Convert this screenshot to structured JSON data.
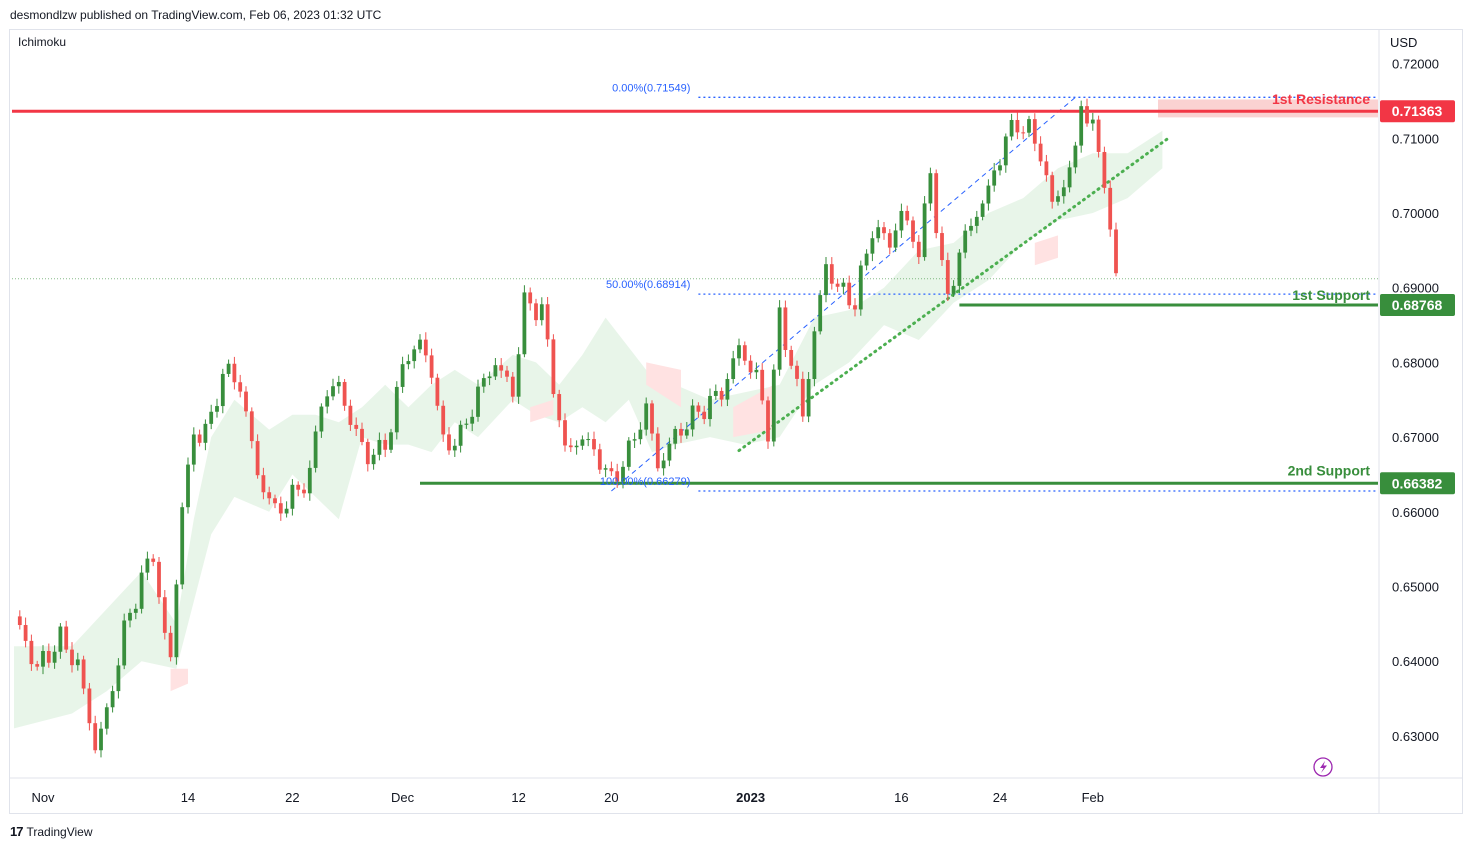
{
  "header": {
    "publisher_line": "desmondlzw published on TradingView.com, Feb 06, 2023 01:32 UTC",
    "indicator": "Ichimoku",
    "currency": "USD"
  },
  "footer": {
    "brand": "TradingView"
  },
  "chart_data": {
    "type": "candlestick",
    "ylim": [
      0.6245,
      0.7245
    ],
    "y_ticks": [
      0.72,
      0.71,
      0.7,
      0.69,
      0.68,
      0.67,
      0.66,
      0.65,
      0.64,
      0.63
    ],
    "y_tick_labels": [
      "0.72000",
      "0.71000",
      "0.70000",
      "0.69000",
      "0.68000",
      "0.67000",
      "0.66000",
      "0.65000",
      "0.64000",
      "0.63000"
    ],
    "x_ticks": [
      {
        "label": "Nov",
        "bar": 5,
        "bold": false
      },
      {
        "label": "14",
        "bar": 30,
        "bold": false
      },
      {
        "label": "22",
        "bar": 48,
        "bold": false
      },
      {
        "label": "Dec",
        "bar": 67,
        "bold": false
      },
      {
        "label": "12",
        "bar": 87,
        "bold": false
      },
      {
        "label": "20",
        "bar": 103,
        "bold": false
      },
      {
        "label": "2023",
        "bar": 127,
        "bold": true
      },
      {
        "label": "16",
        "bar": 153,
        "bold": false
      },
      {
        "label": "24",
        "bar": 170,
        "bold": false
      },
      {
        "label": "Feb",
        "bar": 186,
        "bold": false
      }
    ],
    "close_path": [
      [
        0,
        0.646
      ],
      [
        4,
        0.639
      ],
      [
        8,
        0.643
      ],
      [
        11,
        0.6395
      ],
      [
        14,
        0.6285
      ],
      [
        16,
        0.633
      ],
      [
        19,
        0.644
      ],
      [
        22,
        0.651
      ],
      [
        24,
        0.6545
      ],
      [
        26,
        0.643
      ],
      [
        27,
        0.6405
      ],
      [
        29,
        0.661
      ],
      [
        31,
        0.67
      ],
      [
        34,
        0.672
      ],
      [
        36,
        0.679
      ],
      [
        39,
        0.677
      ],
      [
        42,
        0.665
      ],
      [
        45,
        0.66
      ],
      [
        48,
        0.662
      ],
      [
        51,
        0.665
      ],
      [
        53,
        0.675
      ],
      [
        56,
        0.677
      ],
      [
        59,
        0.67
      ],
      [
        62,
        0.667
      ],
      [
        65,
        0.671
      ],
      [
        67,
        0.68
      ],
      [
        70,
        0.6825
      ],
      [
        72,
        0.679
      ],
      [
        74,
        0.669
      ],
      [
        77,
        0.67
      ],
      [
        80,
        0.676
      ],
      [
        83,
        0.68
      ],
      [
        86,
        0.676
      ],
      [
        88,
        0.688
      ],
      [
        91,
        0.687
      ],
      [
        93,
        0.677
      ],
      [
        95,
        0.668
      ],
      [
        98,
        0.67
      ],
      [
        101,
        0.667
      ],
      [
        103,
        0.664
      ],
      [
        106,
        0.668
      ],
      [
        109,
        0.674
      ],
      [
        111,
        0.666
      ],
      [
        113,
        0.669
      ],
      [
        116,
        0.672
      ],
      [
        119,
        0.674
      ],
      [
        122,
        0.676
      ],
      [
        125,
        0.682
      ],
      [
        128,
        0.678
      ],
      [
        130,
        0.671
      ],
      [
        132,
        0.686
      ],
      [
        134,
        0.68
      ],
      [
        136,
        0.673
      ],
      [
        138,
        0.684
      ],
      [
        140,
        0.693
      ],
      [
        142,
        0.69
      ],
      [
        145,
        0.688
      ],
      [
        148,
        0.698
      ],
      [
        151,
        0.696
      ],
      [
        153,
        0.7
      ],
      [
        156,
        0.695
      ],
      [
        158,
        0.705
      ],
      [
        160,
        0.693
      ],
      [
        161,
        0.688
      ],
      [
        163,
        0.695
      ],
      [
        166,
        0.7
      ],
      [
        168,
        0.703
      ],
      [
        171,
        0.71
      ],
      [
        173,
        0.712
      ],
      [
        175,
        0.711
      ],
      [
        177,
        0.708
      ],
      [
        179,
        0.701
      ],
      [
        181,
        0.704
      ],
      [
        183,
        0.708
      ],
      [
        184,
        0.715
      ],
      [
        186,
        0.711
      ],
      [
        188,
        0.705
      ],
      [
        189,
        0.697
      ],
      [
        190,
        0.691
      ]
    ],
    "cloud": [
      [
        0,
        0.631,
        0.642
      ],
      [
        10,
        0.633,
        0.642
      ],
      [
        16,
        0.636,
        0.647
      ],
      [
        22,
        0.64,
        0.652
      ],
      [
        28,
        0.639,
        0.645
      ],
      [
        31,
        0.648,
        0.659
      ],
      [
        34,
        0.657,
        0.67
      ],
      [
        38,
        0.662,
        0.675
      ],
      [
        44,
        0.66,
        0.671
      ],
      [
        48,
        0.665,
        0.673
      ],
      [
        52,
        0.662,
        0.673
      ],
      [
        56,
        0.659,
        0.672
      ],
      [
        60,
        0.67,
        0.674
      ],
      [
        64,
        0.669,
        0.677
      ],
      [
        68,
        0.669,
        0.674
      ],
      [
        72,
        0.668,
        0.677
      ],
      [
        76,
        0.672,
        0.679
      ],
      [
        80,
        0.67,
        0.677
      ],
      [
        86,
        0.675,
        0.681
      ],
      [
        90,
        0.673,
        0.68
      ],
      [
        94,
        0.672,
        0.677
      ],
      [
        98,
        0.674,
        0.681
      ],
      [
        102,
        0.672,
        0.686
      ],
      [
        106,
        0.675,
        0.682
      ],
      [
        110,
        0.668,
        0.678
      ],
      [
        114,
        0.669,
        0.677
      ],
      [
        120,
        0.67,
        0.675
      ],
      [
        126,
        0.669,
        0.676
      ],
      [
        132,
        0.67,
        0.677
      ],
      [
        138,
        0.677,
        0.686
      ],
      [
        144,
        0.68,
        0.687
      ],
      [
        150,
        0.685,
        0.69
      ],
      [
        156,
        0.683,
        0.695
      ],
      [
        162,
        0.688,
        0.696
      ],
      [
        168,
        0.691,
        0.7
      ],
      [
        174,
        0.696,
        0.702
      ],
      [
        180,
        0.699,
        0.706
      ],
      [
        186,
        0.7,
        0.708
      ],
      [
        192,
        0.702,
        0.708
      ],
      [
        198,
        0.706,
        0.711
      ]
    ],
    "cloud_red_patches": [
      [
        [
          27,
          0.636,
          0.639
        ],
        [
          30,
          0.637,
          0.639
        ]
      ],
      [
        [
          89,
          0.672,
          0.674
        ],
        [
          93,
          0.673,
          0.675
        ]
      ],
      [
        [
          109,
          0.677,
          0.68
        ],
        [
          115,
          0.674,
          0.679
        ]
      ],
      [
        [
          124,
          0.67,
          0.674
        ],
        [
          131,
          0.671,
          0.677
        ]
      ],
      [
        [
          176,
          0.693,
          0.696
        ],
        [
          180,
          0.694,
          0.697
        ]
      ]
    ],
    "annotations": {
      "resistance_1": {
        "label": "1st Resistance",
        "value": 0.71363,
        "badge": "0.71363",
        "color": "#f23645"
      },
      "support_1": {
        "label": "1st Support",
        "value": 0.68768,
        "badge": "0.68768",
        "color": "#388e3c"
      },
      "support_2": {
        "label": "2nd Support",
        "value": 0.66382,
        "badge": "0.66382",
        "color": "#388e3c"
      },
      "fib_0": {
        "label": "0.00%(0.71549)",
        "value": 0.71549
      },
      "fib_50": {
        "label": "50.00%(0.68914)",
        "value": 0.68914
      },
      "fib_100": {
        "label": "100.00%(0.66279)",
        "value": 0.66279
      },
      "current_price_line": 0.6912,
      "uptrend_line": [
        [
          125,
          0.6682
        ],
        [
          199,
          0.71
        ]
      ],
      "fib_trendline": [
        [
          103,
          0.66279
        ],
        [
          183,
          0.71549
        ]
      ]
    },
    "colors": {
      "up": "#388e3c",
      "down": "#ef5350",
      "cloud_green": "#e8f5e9",
      "cloud_red": "#ffe2e2",
      "fib": "#2962ff"
    }
  }
}
